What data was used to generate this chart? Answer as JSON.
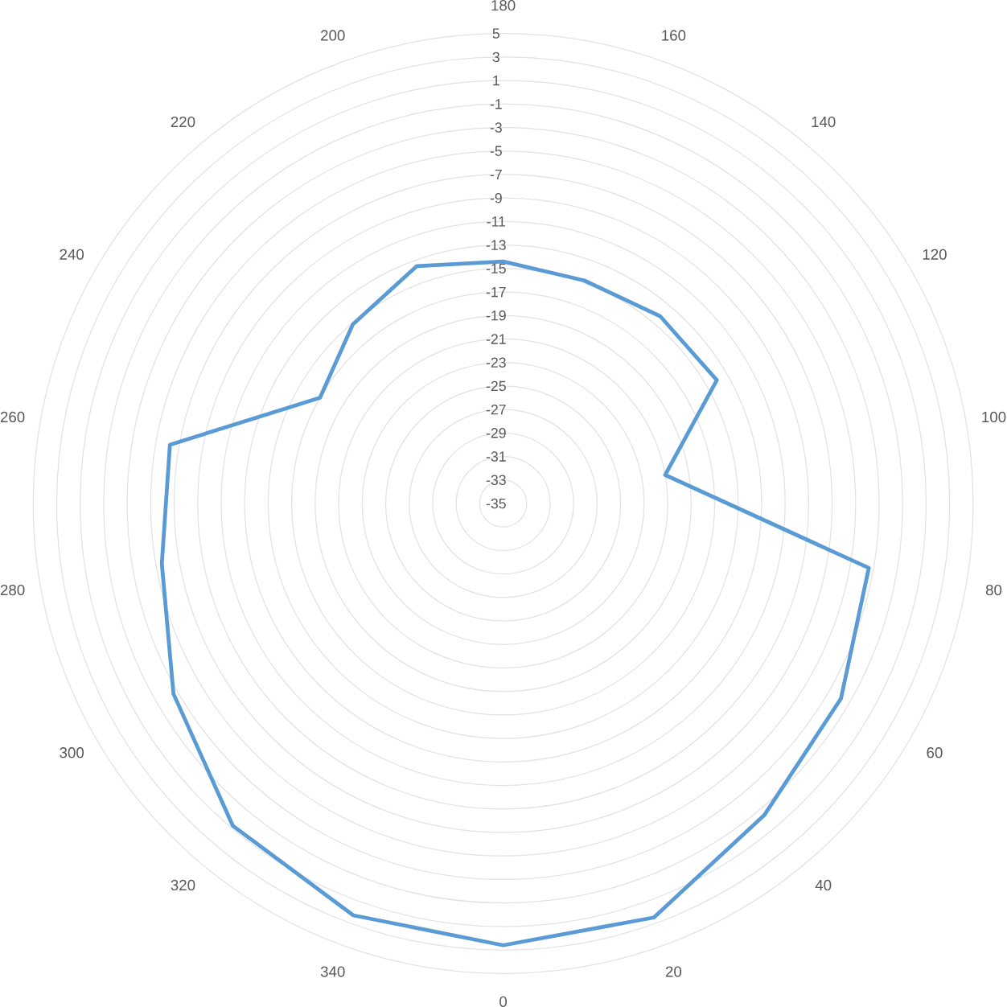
{
  "chart_data": {
    "type": "radar",
    "categories": [
      "180",
      "160",
      "140",
      "120",
      "100",
      "80",
      "60",
      "40",
      "20",
      "0",
      "340",
      "320",
      "300",
      "280",
      "260",
      "240",
      "220",
      "200"
    ],
    "series": [
      {
        "color": "#5b9bd5",
        "values": [
          -14.4,
          -14.8,
          -14.2,
          -14,
          -21,
          -3.4,
          -1.8,
          -0.4,
          2.5,
          2.6,
          2.3,
          0.8,
          -2.6,
          -5.5,
          -6.2,
          -17,
          -15.1,
          -13.5
        ]
      }
    ],
    "ylim": [
      -35,
      5
    ],
    "yticks": [
      -35,
      -33,
      -31,
      -29,
      -27,
      -25,
      -23,
      -21,
      -19,
      -17,
      -15,
      -13,
      -11,
      -9,
      -7,
      -5,
      -3,
      -1,
      1,
      3,
      5
    ],
    "grid": true
  }
}
